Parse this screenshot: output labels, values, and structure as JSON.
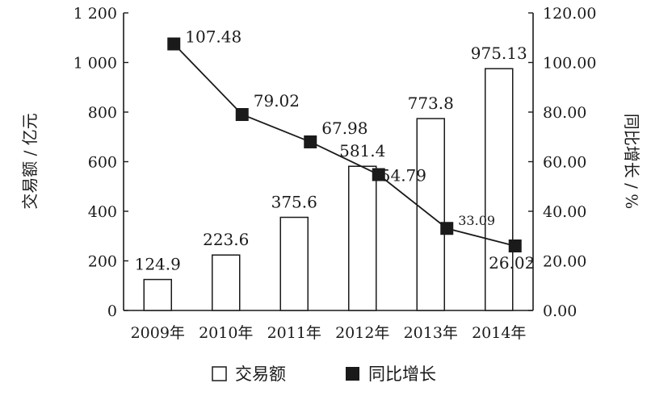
{
  "chart_data": {
    "type": "bar",
    "categories": [
      "2009年",
      "2010年",
      "2011年",
      "2012年",
      "2013年",
      "2014年"
    ],
    "series": [
      {
        "name": "交易额",
        "type": "bar",
        "axis": "left",
        "values": [
          124.9,
          223.6,
          375.6,
          581.4,
          773.8,
          975.13
        ],
        "labels": [
          "124.9",
          "223.6",
          "375.6",
          "581.4",
          "773.8",
          "975.13"
        ]
      },
      {
        "name": "同比增长",
        "type": "line",
        "axis": "right",
        "values": [
          107.48,
          79.02,
          67.98,
          54.79,
          33.09,
          26.02
        ],
        "labels": [
          "107.48",
          "79.02",
          "67.98",
          "54.79",
          "33.09",
          "26.02"
        ]
      }
    ],
    "y_left": {
      "label": "交易额 / 亿元",
      "lim": [
        0,
        1200
      ],
      "ticks": [
        0,
        200,
        400,
        600,
        800,
        1000,
        1200
      ],
      "tick_labels": [
        "0",
        "200",
        "400",
        "600",
        "800",
        "1 000",
        "1 200"
      ]
    },
    "y_right": {
      "label": "同比增长 / %",
      "lim": [
        0,
        120
      ],
      "ticks": [
        0,
        20,
        40,
        60,
        80,
        100,
        120
      ],
      "tick_labels": [
        "0.00",
        "20.00",
        "40.00",
        "60.00",
        "80.00",
        "100.00",
        "120.00"
      ]
    },
    "legend": {
      "position": "bottom",
      "entries": [
        "交易额",
        "同比增长"
      ]
    },
    "grid": false,
    "colors": {
      "bar_fill": "#ffffff",
      "stroke": "#1a1a1a",
      "marker": "#1a1a1a"
    }
  }
}
